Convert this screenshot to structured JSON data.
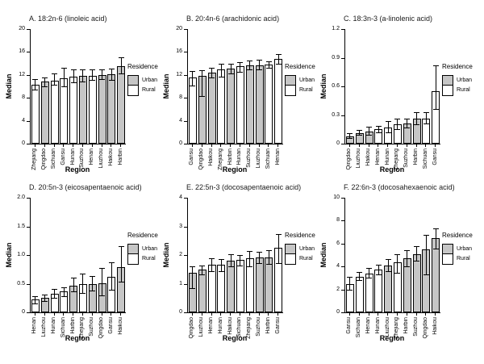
{
  "figure": {
    "background": "#ffffff",
    "axis_color": "#000000",
    "bar_border_color": "#000000"
  },
  "legend": {
    "title": "Residence",
    "items": [
      {
        "label": "Urban",
        "color": "#c6c6c6"
      },
      {
        "label": "Rural",
        "color": "#ffffff"
      }
    ]
  },
  "chart_data": [
    {
      "type": "bar",
      "panel": "A",
      "title": "A. 18:2n-6 (linoleic acid)",
      "xlabel": "Region",
      "ylabel": "Median",
      "ylim": [
        0,
        20
      ],
      "yticks": [
        0,
        4,
        8,
        12,
        16,
        20
      ],
      "ytick_labels": [
        "0",
        "4",
        "8",
        "12",
        "16",
        "20"
      ],
      "categories": [
        "Zhejiang",
        "Qingdao",
        "Sichuan",
        "Gansu",
        "Hunan",
        "Suzhou",
        "Henan",
        "Liuzhou",
        "Haikou",
        "Harbin"
      ],
      "residence": [
        "Rural",
        "Urban",
        "Rural",
        "Rural",
        "Rural",
        "Urban",
        "Rural",
        "Urban",
        "Urban",
        "Urban"
      ],
      "values": [
        10.3,
        10.8,
        11.0,
        11.4,
        11.7,
        11.9,
        11.9,
        12.0,
        12.1,
        13.5
      ],
      "err_low": [
        9.4,
        10.0,
        10.3,
        10.0,
        10.7,
        10.9,
        11.1,
        11.3,
        11.1,
        12.3
      ],
      "err_high": [
        11.2,
        11.6,
        12.3,
        13.2,
        12.9,
        13.0,
        12.9,
        12.9,
        13.1,
        15.1
      ]
    },
    {
      "type": "bar",
      "panel": "B",
      "title": "B. 20:4n-6 (arachidonic acid)",
      "xlabel": "Region",
      "ylabel": "Median",
      "ylim": [
        0,
        20
      ],
      "yticks": [
        0,
        4,
        8,
        12,
        16,
        20
      ],
      "ytick_labels": [
        "0",
        "4",
        "8",
        "12",
        "16",
        "20"
      ],
      "categories": [
        "Gansu",
        "Qingdao",
        "Haikou",
        "Zhejiang",
        "Harbin",
        "Hunan",
        "Suzhou",
        "Liuzhou",
        "Sichuan",
        "Henan"
      ],
      "residence": [
        "Rural",
        "Urban",
        "Urban",
        "Rural",
        "Urban",
        "Rural",
        "Urban",
        "Urban",
        "Rural",
        "Rural"
      ],
      "values": [
        11.6,
        11.8,
        12.4,
        13.0,
        13.1,
        13.5,
        13.7,
        13.7,
        13.8,
        14.8
      ],
      "err_low": [
        10.2,
        8.3,
        11.6,
        11.7,
        12.2,
        12.6,
        12.9,
        12.9,
        13.3,
        13.9
      ],
      "err_high": [
        12.7,
        12.8,
        13.3,
        13.9,
        14.0,
        14.2,
        14.5,
        14.6,
        14.3,
        15.7
      ]
    },
    {
      "type": "bar",
      "panel": "C",
      "title": "C. 18:3n-3 (a-linolenic acid)",
      "xlabel": "Region",
      "ylabel": "Median",
      "ylim": [
        0,
        1.2
      ],
      "yticks": [
        0,
        0.3,
        0.6,
        0.9,
        1.2
      ],
      "ytick_labels": [
        "0",
        "0.3",
        "0.6",
        "0.9",
        "1.2"
      ],
      "categories": [
        "Qingdao",
        "Liuzhou",
        "Haikou",
        "Henan",
        "Hunan",
        "Zhejiang",
        "Suzhou",
        "Harbin",
        "Sichuan",
        "Gansu"
      ],
      "residence": [
        "Urban",
        "Urban",
        "Urban",
        "Rural",
        "Rural",
        "Rural",
        "Urban",
        "Urban",
        "Rural",
        "Rural"
      ],
      "values": [
        0.08,
        0.11,
        0.13,
        0.15,
        0.17,
        0.2,
        0.21,
        0.26,
        0.26,
        0.55
      ],
      "err_low": [
        0.06,
        0.09,
        0.09,
        0.12,
        0.12,
        0.15,
        0.17,
        0.2,
        0.21,
        0.36
      ],
      "err_high": [
        0.11,
        0.14,
        0.18,
        0.19,
        0.24,
        0.26,
        0.26,
        0.33,
        0.33,
        0.82
      ]
    },
    {
      "type": "bar",
      "panel": "D",
      "title": "D. 20:5n-3 (eicosapentaenoic acid)",
      "xlabel": "Region",
      "ylabel": "Median",
      "ylim": [
        0,
        2.0
      ],
      "yticks": [
        0,
        0.5,
        1.0,
        1.5,
        2.0
      ],
      "ytick_labels": [
        "0",
        "0.5",
        "1.0",
        "1.5",
        "2.0"
      ],
      "categories": [
        "Henan",
        "Liuzhou",
        "Hunan",
        "Sichuan",
        "Harbin",
        "Zhejiang",
        "Suzhou",
        "Qingdao",
        "Gansu",
        "Haikou"
      ],
      "residence": [
        "Rural",
        "Urban",
        "Rural",
        "Rural",
        "Urban",
        "Rural",
        "Urban",
        "Urban",
        "Rural",
        "Urban"
      ],
      "values": [
        0.22,
        0.25,
        0.32,
        0.36,
        0.46,
        0.49,
        0.5,
        0.51,
        0.62,
        0.79
      ],
      "err_low": [
        0.16,
        0.2,
        0.26,
        0.28,
        0.36,
        0.34,
        0.38,
        0.3,
        0.4,
        0.53
      ],
      "err_high": [
        0.28,
        0.31,
        0.41,
        0.43,
        0.6,
        0.67,
        0.63,
        0.78,
        0.88,
        1.15
      ]
    },
    {
      "type": "bar",
      "panel": "E",
      "title": "E. 22:5n-3 (docosapentaenoic acid)",
      "xlabel": "Region",
      "ylabel": "Median",
      "ylim": [
        0,
        4
      ],
      "yticks": [
        0,
        1,
        2,
        3,
        4
      ],
      "ytick_labels": [
        "0",
        "1",
        "2",
        "3",
        "4"
      ],
      "categories": [
        "Qingdao",
        "Liuzhou",
        "Henan",
        "Hunan",
        "Haikou",
        "Sichuan",
        "Zhejiang",
        "Suzhou",
        "Harbin",
        "Gansu"
      ],
      "residence": [
        "Urban",
        "Urban",
        "Rural",
        "Rural",
        "Urban",
        "Rural",
        "Rural",
        "Urban",
        "Urban",
        "Rural"
      ],
      "values": [
        1.38,
        1.48,
        1.66,
        1.66,
        1.81,
        1.84,
        1.89,
        1.92,
        1.93,
        2.25
      ],
      "err_low": [
        0.85,
        1.33,
        1.45,
        1.44,
        1.6,
        1.63,
        1.6,
        1.73,
        1.7,
        1.73
      ],
      "err_high": [
        1.6,
        1.63,
        1.88,
        1.87,
        2.04,
        2.0,
        2.15,
        2.1,
        2.18,
        2.72
      ]
    },
    {
      "type": "bar",
      "panel": "F",
      "title": "F. 22:6n-3 (docosahexaenoic acid)",
      "xlabel": "Region",
      "ylabel": "Median",
      "ylim": [
        0,
        10
      ],
      "yticks": [
        0,
        2,
        4,
        6,
        8,
        10
      ],
      "ytick_labels": [
        "0",
        "2",
        "4",
        "6",
        "8",
        "10"
      ],
      "categories": [
        "Gansu",
        "Sichuan",
        "Henan",
        "Hunan",
        "Liuzhou",
        "Zhejiang",
        "Harbin",
        "Suzhou",
        "Qingdao",
        "Haikou"
      ],
      "residence": [
        "Rural",
        "Rural",
        "Rural",
        "Rural",
        "Urban",
        "Rural",
        "Urban",
        "Urban",
        "Urban",
        "Urban"
      ],
      "values": [
        2.5,
        3.1,
        3.4,
        3.7,
        4.1,
        4.35,
        4.7,
        5.1,
        5.5,
        6.45
      ],
      "err_low": [
        2.0,
        2.8,
        3.0,
        3.3,
        3.6,
        3.45,
        4.0,
        4.5,
        3.3,
        5.55
      ],
      "err_high": [
        3.1,
        3.55,
        3.85,
        4.15,
        4.65,
        5.05,
        5.45,
        5.75,
        6.75,
        7.3
      ]
    }
  ]
}
